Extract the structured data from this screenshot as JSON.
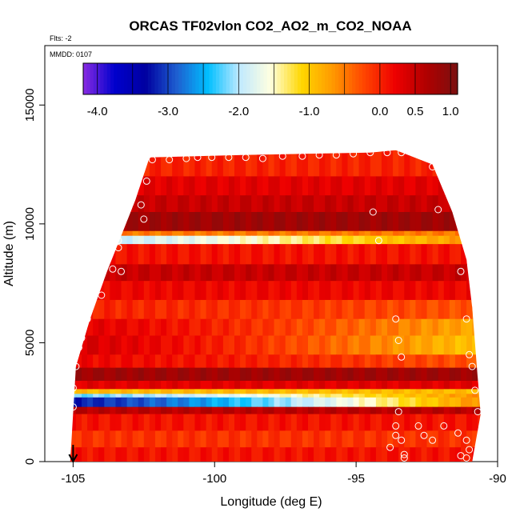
{
  "chart_data": {
    "type": "heatmap",
    "title": "ORCAS TF02vlon CO2_AO2_m_CO2_NOAA",
    "subtitle_flts": "Flts: -2",
    "annotation_mmdd": "MMDD: 0107",
    "xlabel": "Longitude (deg E)",
    "ylabel": "Altitude (m)",
    "xlim": [
      -106,
      -90
    ],
    "ylim": [
      0,
      17500
    ],
    "x_ticks": [
      -105,
      -100,
      -95,
      -90
    ],
    "x_tick_labels": [
      "-105",
      "-100",
      "-95",
      "-90"
    ],
    "y_ticks": [
      0,
      5000,
      10000,
      15000
    ],
    "y_tick_labels": [
      "0",
      "5000",
      "10000",
      "15000"
    ],
    "colorbar": {
      "range": [
        -4.2,
        1.1
      ],
      "ticks": [
        -4.0,
        -3.0,
        -2.0,
        -1.0,
        0.0,
        0.5,
        1.0
      ],
      "tick_labels": [
        "-4.0",
        "-3.0",
        "-2.0",
        "-1.0",
        "0.0",
        "0.5",
        "1.0"
      ],
      "colors": [
        "#8a2be2",
        "#0000cd",
        "#0000a0",
        "#1e5fd0",
        "#00bfff",
        "#bfe9ff",
        "#ffffe0",
        "#ffd700",
        "#ff9900",
        "#ff4500",
        "#ee0000",
        "#b00000",
        "#7a1010"
      ]
    },
    "envelope": [
      [
        -105.1,
        0
      ],
      [
        -104.9,
        4000
      ],
      [
        -104.4,
        6000
      ],
      [
        -103.8,
        8000
      ],
      [
        -103.3,
        9500
      ],
      [
        -102.8,
        11000
      ],
      [
        -102.3,
        12800
      ],
      [
        -99.0,
        12900
      ],
      [
        -94.5,
        13000
      ],
      [
        -93.6,
        13100
      ],
      [
        -92.3,
        12500
      ],
      [
        -91.6,
        10500
      ],
      [
        -91.1,
        8500
      ],
      [
        -90.9,
        6500
      ],
      [
        -90.8,
        5000
      ],
      [
        -90.7,
        3500
      ],
      [
        -90.6,
        2000
      ],
      [
        -90.9,
        0
      ]
    ],
    "bands": [
      {
        "y0": 12000,
        "y1": 13100,
        "value": 0.0
      },
      {
        "y0": 11200,
        "y1": 12000,
        "value": 0.3
      },
      {
        "y0": 10500,
        "y1": 11200,
        "value": 0.5
      },
      {
        "y0": 9700,
        "y1": 10500,
        "value": 0.8
      },
      {
        "y0": 9500,
        "y1": 9700,
        "value": -0.5
      },
      {
        "y0": 9150,
        "y1": 9500,
        "value": -2.0,
        "fade_to": -0.6
      },
      {
        "y0": 8300,
        "y1": 9150,
        "value": 0.1
      },
      {
        "y0": 7600,
        "y1": 8300,
        "value": 0.5
      },
      {
        "y0": 6800,
        "y1": 7600,
        "value": 0.2
      },
      {
        "y0": 6000,
        "y1": 6800,
        "value": 0.0,
        "fade_to": -0.3
      },
      {
        "y0": 5300,
        "y1": 6000,
        "value": 0.3,
        "fade_to": -0.8
      },
      {
        "y0": 4500,
        "y1": 5300,
        "value": 0.4,
        "fade_to": -1.0
      },
      {
        "y0": 3950,
        "y1": 4500,
        "value": 0.2,
        "fade_to": -0.3
      },
      {
        "y0": 3400,
        "y1": 3950,
        "value": 0.8
      },
      {
        "y0": 3050,
        "y1": 3400,
        "value": 0.3
      },
      {
        "y0": 2850,
        "y1": 3050,
        "value": -0.9
      },
      {
        "y0": 2700,
        "y1": 2850,
        "value": -2.2,
        "fade_to": -0.6
      },
      {
        "y0": 2300,
        "y1": 2700,
        "value": -3.2,
        "fade_to": -0.6
      },
      {
        "y0": 2000,
        "y1": 2300,
        "value": 0.6
      },
      {
        "y0": 1300,
        "y1": 2000,
        "value": 0.1
      },
      {
        "y0": 600,
        "y1": 1300,
        "value": -0.1
      },
      {
        "y0": 0,
        "y1": 600,
        "value": 0.1
      }
    ],
    "markers": [
      [
        -102.8,
        12700
      ],
      [
        -102.2,
        12700
      ],
      [
        -101.6,
        12700
      ],
      [
        -101.0,
        12750
      ],
      [
        -100.6,
        12800
      ],
      [
        -100.1,
        12800
      ],
      [
        -99.5,
        12800
      ],
      [
        -98.9,
        12800
      ],
      [
        -98.3,
        12750
      ],
      [
        -97.6,
        12850
      ],
      [
        -96.9,
        12850
      ],
      [
        -96.3,
        12900
      ],
      [
        -95.7,
        12900
      ],
      [
        -95.1,
        12950
      ],
      [
        -94.5,
        13000
      ],
      [
        -93.9,
        13000
      ],
      [
        -93.4,
        13000
      ],
      [
        -102.4,
        11800
      ],
      [
        -102.6,
        10800
      ],
      [
        -102.5,
        10200
      ],
      [
        -103.4,
        9300
      ],
      [
        -103.4,
        9000
      ],
      [
        -103.6,
        8100
      ],
      [
        -103.3,
        8000
      ],
      [
        -104.0,
        7000
      ],
      [
        -104.5,
        6000
      ],
      [
        -104.7,
        5200
      ],
      [
        -104.8,
        4800
      ],
      [
        -104.9,
        4000
      ],
      [
        -105.0,
        3100
      ],
      [
        -105.0,
        2300
      ],
      [
        -94.4,
        10500
      ],
      [
        -94.2,
        9300
      ],
      [
        -91.3,
        8000
      ],
      [
        -92.1,
        10600
      ],
      [
        -92.3,
        12400
      ],
      [
        -93.6,
        6000
      ],
      [
        -93.5,
        5100
      ],
      [
        -93.4,
        4400
      ],
      [
        -93.5,
        2100
      ],
      [
        -93.6,
        1100
      ],
      [
        -93.4,
        900
      ],
      [
        -93.3,
        300
      ],
      [
        -93.3,
        150
      ],
      [
        -92.8,
        1500
      ],
      [
        -92.6,
        1100
      ],
      [
        -92.3,
        900
      ],
      [
        -91.9,
        1500
      ],
      [
        -91.4,
        1200
      ],
      [
        -91.1,
        900
      ],
      [
        -91.0,
        500
      ],
      [
        -91.3,
        250
      ],
      [
        -91.1,
        150
      ],
      [
        -90.8,
        3000
      ],
      [
        -90.9,
        4000
      ],
      [
        -91.0,
        4500
      ],
      [
        -91.1,
        6000
      ],
      [
        -90.7,
        2100
      ],
      [
        -93.6,
        1500
      ],
      [
        -93.8,
        600
      ]
    ],
    "arrow_at_x": -105
  }
}
